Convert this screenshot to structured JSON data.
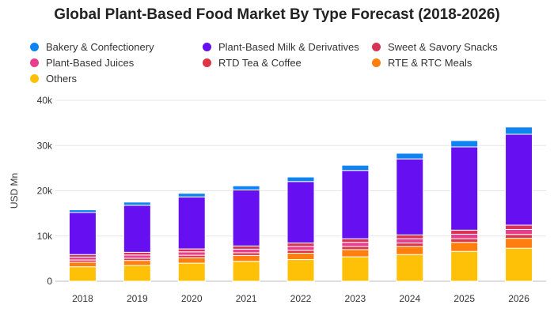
{
  "chart_data": {
    "type": "bar",
    "stacked": true,
    "title": "Global Plant-Based Food Market By Type Forecast (2018-2026)",
    "xlabel": "",
    "ylabel": "USD Mn",
    "ylim": [
      0,
      40000
    ],
    "yticks": [
      0,
      10000,
      20000,
      30000,
      40000
    ],
    "ytick_labels": [
      "0",
      "10k",
      "20k",
      "30k",
      "40k"
    ],
    "grid": true,
    "legend_position": "top",
    "categories": [
      "2018",
      "2019",
      "2020",
      "2021",
      "2022",
      "2023",
      "2024",
      "2025",
      "2026"
    ],
    "series": [
      {
        "name": "Others",
        "color": "#FFC107",
        "values": [
          3200,
          3500,
          4000,
          4400,
          4800,
          5400,
          5900,
          6600,
          7300
        ]
      },
      {
        "name": "RTE & RTC Meals",
        "color": "#FF7F0E",
        "values": [
          1000,
          1100,
          1200,
          1300,
          1400,
          1600,
          1800,
          2000,
          2200
        ]
      },
      {
        "name": "RTD Tea & Coffee",
        "color": "#DC3545",
        "values": [
          500,
          500,
          550,
          600,
          650,
          700,
          750,
          800,
          850
        ]
      },
      {
        "name": "Plant-Based Juices",
        "color": "#E83E8C",
        "values": [
          650,
          700,
          750,
          800,
          850,
          900,
          950,
          1000,
          1100
        ]
      },
      {
        "name": "Sweet & Savory Snacks",
        "color": "#D63454",
        "values": [
          550,
          600,
          650,
          700,
          750,
          800,
          850,
          900,
          950
        ]
      },
      {
        "name": "Plant-Based Milk & Derivatives",
        "color": "#6610F2",
        "values": [
          9300,
          10400,
          11500,
          12400,
          13600,
          15100,
          16800,
          18400,
          20100
        ]
      },
      {
        "name": "Bakery & Confectionery",
        "color": "#0D84F2",
        "values": [
          600,
          700,
          800,
          900,
          1000,
          1150,
          1250,
          1400,
          1600
        ]
      }
    ],
    "legend": [
      {
        "name": "Bakery & Confectionery",
        "color": "#0D84F2"
      },
      {
        "name": "Plant-Based Milk & Derivatives",
        "color": "#6610F2"
      },
      {
        "name": "Sweet & Savory Snacks",
        "color": "#D63454"
      },
      {
        "name": "Plant-Based Juices",
        "color": "#E83E8C"
      },
      {
        "name": "RTD Tea & Coffee",
        "color": "#DC3545"
      },
      {
        "name": "RTE & RTC Meals",
        "color": "#FF7F0E"
      },
      {
        "name": "Others",
        "color": "#FFC107"
      }
    ]
  }
}
